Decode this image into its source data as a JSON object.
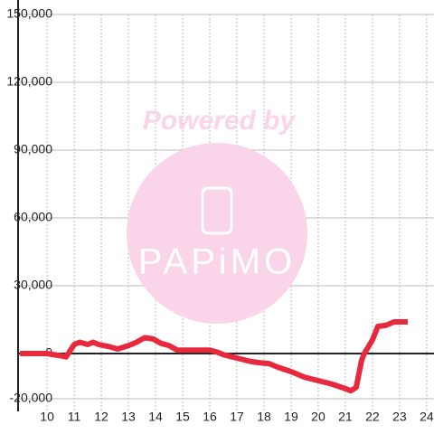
{
  "chart_data": {
    "type": "line",
    "x": [
      9.0,
      10.0,
      10.5,
      10.7,
      11.0,
      11.2,
      11.5,
      11.7,
      11.9,
      12.3,
      12.6,
      13.0,
      13.3,
      13.6,
      13.9,
      14.2,
      14.5,
      14.8,
      15.5,
      16.0,
      16.3,
      16.5,
      17.0,
      17.5,
      17.8,
      18.2,
      18.5,
      19.0,
      19.5,
      20.0,
      20.5,
      21.0,
      21.2,
      21.4,
      21.6,
      21.7,
      22.0,
      22.2,
      22.5,
      22.8,
      23.3
    ],
    "series": [
      {
        "color": "#e8283c",
        "values": [
          0,
          0,
          -1000,
          -1500,
          4000,
          5000,
          4000,
          5000,
          4000,
          3000,
          2000,
          3500,
          5000,
          7000,
          6500,
          4500,
          3500,
          1500,
          1500,
          1500,
          500,
          -500,
          -2000,
          -3500,
          -4000,
          -4500,
          -6000,
          -8000,
          -10500,
          -12000,
          -13500,
          -15500,
          -16500,
          -15000,
          -3000,
          0,
          6000,
          12000,
          12500,
          14000,
          14000
        ]
      }
    ],
    "xlim": [
      8.93,
      24.27
    ],
    "xticks": [
      10,
      11,
      12,
      13,
      14,
      15,
      16,
      17,
      18,
      19,
      20,
      21,
      22,
      23,
      24
    ],
    "ylim": [
      -20000,
      150000
    ],
    "yticks": [
      {
        "value": -20000,
        "label": "-20,000"
      },
      0,
      {
        "value": 30000,
        "label": "30,000"
      },
      {
        "value": 60000,
        "label": "60,000"
      },
      {
        "value": 90000,
        "label": "90,000"
      },
      {
        "value": 120000,
        "label": "120,000"
      },
      {
        "value": 150000,
        "label": "150,000"
      }
    ],
    "grid": true,
    "annotations": [
      "Powered by",
      "PAPiMO"
    ]
  }
}
